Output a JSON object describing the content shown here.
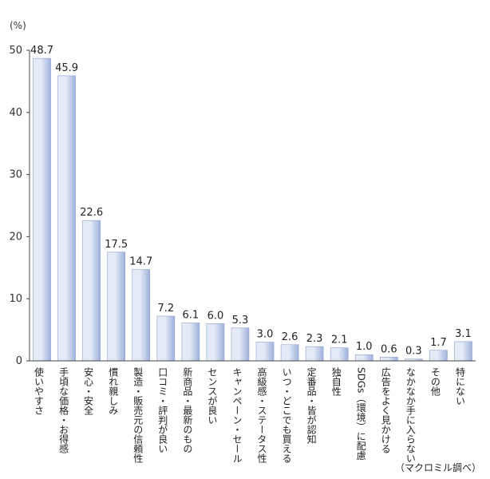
{
  "chart_data": {
    "type": "bar",
    "unit_label": "(%)",
    "source_note": "（マクロミル調べ）",
    "ylim": [
      0,
      50
    ],
    "yticks": [
      "0",
      "10",
      "20",
      "30",
      "40",
      "50"
    ],
    "grid": false,
    "categories": [
      "使いやすさ",
      "手頃な価格・お得感",
      "安心・安全",
      "慣れ親しみ",
      "製造・販売元の信頼性",
      "口コミ・評判が良い",
      "新商品・最新のもの",
      "センスが良い",
      "キャンペーン・セール",
      "高級感・ステータス性",
      "いつ・どこでも買える",
      "定番品・皆が認知",
      "独自性",
      "SDGs（環境）に配慮",
      "広告をよく見かける",
      "なかなか手に入らない",
      "その他",
      "特にない"
    ],
    "values": [
      48.7,
      45.9,
      22.6,
      17.5,
      14.7,
      7.2,
      6.1,
      6.0,
      5.3,
      3.0,
      2.6,
      2.3,
      2.1,
      1.0,
      0.6,
      0.3,
      1.7,
      3.1
    ],
    "value_labels": [
      "48.7",
      "45.9",
      "22.6",
      "17.5",
      "14.7",
      "7.2",
      "6.1",
      "6.0",
      "5.3",
      "3.0",
      "2.6",
      "2.3",
      "2.1",
      "1.0",
      "0.6",
      "0.3",
      "1.7",
      "3.1"
    ],
    "colors": {
      "bar_light": "#e4eaf6",
      "bar_dark": "#9fb1dc",
      "bar_stroke": "#8c9fd0",
      "axis": "#444444"
    }
  }
}
